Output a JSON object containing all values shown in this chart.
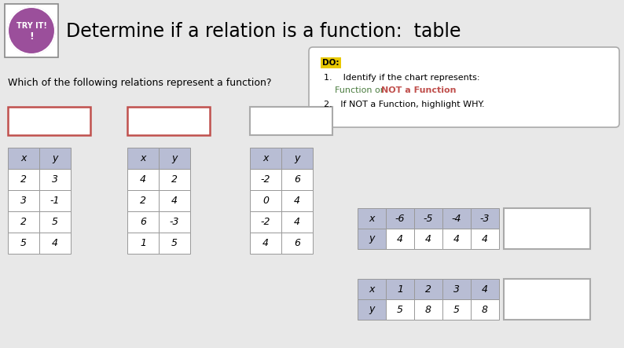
{
  "title": "Determine if a relation is a function:  table",
  "try_it_label": "TRY IT!",
  "try_it_bg": "#9B4F9B",
  "question": "Which of the following relations represent a function?",
  "do_label": "DO:",
  "instructions_line1": "1.    Identify if the chart represents:",
  "instructions_line2a": "Function or ",
  "instructions_line2b": "NOT a Function",
  "instructions_line3": "2.   If NOT a Function, highlight WHY.",
  "bg_color": "#e8e8e8",
  "table_header_color": "#b8bdd4",
  "table_border_color": "#999999",
  "red_border": "#c0504d",
  "gray_border": "#aaaaaa",
  "table1": {
    "headers": [
      "x",
      "y"
    ],
    "rows": [
      [
        "2",
        "3"
      ],
      [
        "3",
        "-1"
      ],
      [
        "2",
        "5"
      ],
      [
        "5",
        "4"
      ]
    ]
  },
  "table2": {
    "headers": [
      "x",
      "y"
    ],
    "rows": [
      [
        "4",
        "2"
      ],
      [
        "2",
        "4"
      ],
      [
        "6",
        "-3"
      ],
      [
        "1",
        "5"
      ]
    ]
  },
  "table3": {
    "headers": [
      "x",
      "y"
    ],
    "rows": [
      [
        "-2",
        "6"
      ],
      [
        "0",
        "4"
      ],
      [
        "-2",
        "4"
      ],
      [
        "4",
        "6"
      ]
    ]
  },
  "table4": {
    "row1": [
      "x",
      "-6",
      "-5",
      "-4",
      "-3"
    ],
    "row2": [
      "y",
      "4",
      "4",
      "4",
      "4"
    ]
  },
  "table5": {
    "row1": [
      "x",
      "1",
      "2",
      "3",
      "4"
    ],
    "row2": [
      "y",
      "5",
      "8",
      "5",
      "8"
    ]
  }
}
